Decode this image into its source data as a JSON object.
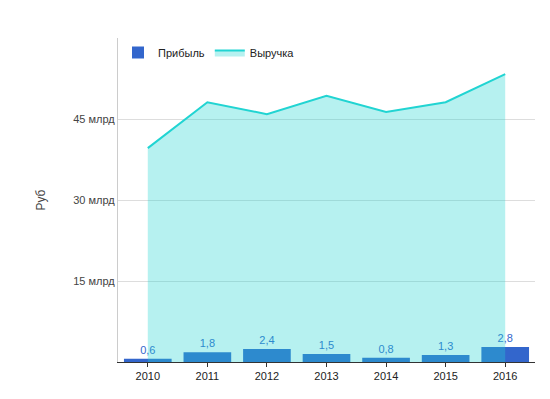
{
  "chart_data": {
    "type": "bar",
    "y_label": "Руб",
    "categories": [
      "2010",
      "2011",
      "2012",
      "2013",
      "2014",
      "2015",
      "2016"
    ],
    "series": [
      {
        "name": "Прибыль",
        "type": "bar",
        "color": "#3366cc",
        "values": [
          0.6,
          1.8,
          2.4,
          1.5,
          0.8,
          1.3,
          2.8
        ],
        "value_labels": [
          "0,6",
          "1,8",
          "2,4",
          "1,5",
          "0,8",
          "1,3",
          "2,8"
        ]
      },
      {
        "name": "Выручка",
        "type": "area",
        "color": "#21d4d2",
        "values": [
          39.6,
          48.1,
          45.9,
          49.3,
          46.3,
          48.1,
          53.3
        ]
      }
    ],
    "ylim": [
      0,
      60
    ],
    "yticks": [
      {
        "value": 15,
        "label": "15 млрд"
      },
      {
        "value": 30,
        "label": "30 млрд"
      },
      {
        "value": 45,
        "label": "45 млрд"
      }
    ],
    "grid": true,
    "data_labels": true,
    "legend": "top-left"
  }
}
